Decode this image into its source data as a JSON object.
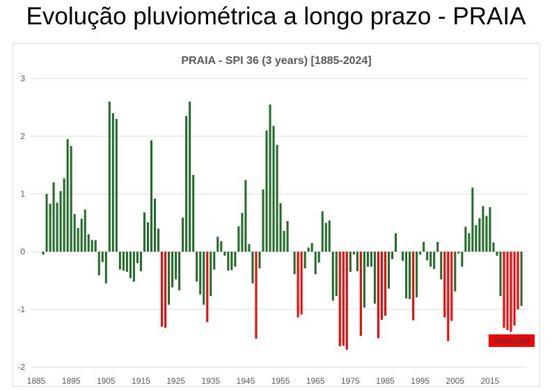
{
  "page_title": "Evolução pluviométrica a longo prazo - PRAIA",
  "chart_data": {
    "type": "bar",
    "title": "PRAIA - SPI 36 (3 years) [1885-2024]",
    "xlabel": "",
    "ylabel": "",
    "ylim": [
      -2,
      3
    ],
    "xlim": [
      1885,
      2025
    ],
    "yticks": [
      3,
      2,
      1,
      0,
      -1,
      -2
    ],
    "xticks": [
      1885,
      1895,
      1905,
      1915,
      1925,
      1935,
      1945,
      1955,
      1965,
      1975,
      1985,
      1995,
      2005,
      2015
    ],
    "grid": true,
    "colors": {
      "positive_normal": "#1e6b25",
      "drought": "#ff0000"
    },
    "drought_threshold": -1,
    "start_year": 1887,
    "values": [
      -0.05,
      1.0,
      0.83,
      1.2,
      0.85,
      1.05,
      1.27,
      1.95,
      1.83,
      0.65,
      0.41,
      0.57,
      0.73,
      0.3,
      0.2,
      0.2,
      -0.41,
      -0.18,
      -0.55,
      2.6,
      2.4,
      2.3,
      -0.31,
      -0.33,
      -0.35,
      -0.46,
      -0.52,
      -0.2,
      -0.34,
      0.68,
      0.51,
      1.93,
      0.92,
      0.4,
      -1.3,
      -1.32,
      -0.92,
      -0.62,
      -0.48,
      -0.67,
      0.59,
      2.35,
      2.6,
      1.33,
      -0.52,
      -0.74,
      -0.92,
      -1.22,
      -0.77,
      -0.31,
      0.26,
      0.18,
      -0.07,
      -0.33,
      -0.32,
      -0.26,
      0.44,
      0.67,
      1.24,
      0.13,
      -0.55,
      -1.51,
      -0.29,
      1.08,
      2.1,
      2.55,
      2.18,
      1.85,
      0.84,
      0.36,
      0.53,
      0,
      -0.39,
      -1.14,
      -1.09,
      -0.29,
      0.07,
      0.15,
      -0.39,
      -0.19,
      0.7,
      0.5,
      0.54,
      -0.85,
      -0.77,
      -1.64,
      -1.63,
      -1.7,
      -0.35,
      -0.05,
      -0.34,
      -1.46,
      -0.97,
      -0.26,
      -0.26,
      -0.9,
      -1.5,
      -1.18,
      -1.11,
      -0.64,
      -0.13,
      0.32,
      0,
      -0.16,
      -0.81,
      -0.82,
      -1.19,
      -0.79,
      -0.05,
      0.17,
      -0.15,
      -0.26,
      -0.3,
      0.17,
      -0.48,
      -1.14,
      -1.55,
      -1.2,
      -0.69,
      -0.03,
      -0.26,
      0.43,
      0.32,
      1.11,
      0.46,
      0.58,
      0.79,
      0.62,
      0.77,
      0.16,
      -0.07,
      -0.77,
      -1.32,
      -1.36,
      -1.39,
      -1.28,
      -1.0,
      -0.94
    ],
    "annotation": {
      "text": "2019-2023",
      "color": "#ff0000"
    }
  }
}
